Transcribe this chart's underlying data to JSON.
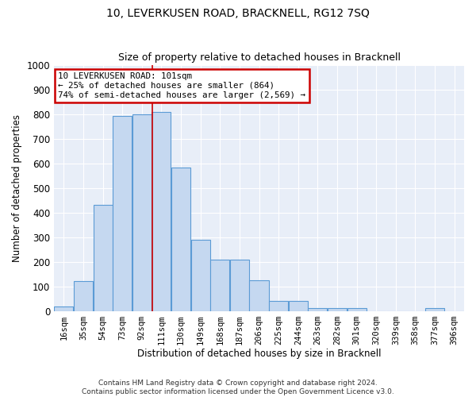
{
  "title": "10, LEVERKUSEN ROAD, BRACKNELL, RG12 7SQ",
  "subtitle": "Size of property relative to detached houses in Bracknell",
  "xlabel": "Distribution of detached houses by size in Bracknell",
  "ylabel": "Number of detached properties",
  "bar_labels": [
    "16sqm",
    "35sqm",
    "54sqm",
    "73sqm",
    "92sqm",
    "111sqm",
    "130sqm",
    "149sqm",
    "168sqm",
    "187sqm",
    "206sqm",
    "225sqm",
    "244sqm",
    "263sqm",
    "282sqm",
    "301sqm",
    "320sqm",
    "339sqm",
    "358sqm",
    "377sqm",
    "396sqm"
  ],
  "bar_values": [
    18,
    120,
    430,
    795,
    800,
    810,
    585,
    290,
    210,
    210,
    125,
    40,
    40,
    12,
    10,
    10,
    0,
    0,
    0,
    10,
    0
  ],
  "bar_color": "#c5d8f0",
  "bar_edge_color": "#5b9bd5",
  "vline_color": "#cc0000",
  "vline_x_index": 4.55,
  "annotation_text": "10 LEVERKUSEN ROAD: 101sqm\n← 25% of detached houses are smaller (864)\n74% of semi-detached houses are larger (2,569) →",
  "annotation_box_color": "#ffffff",
  "annotation_box_edge": "#cc0000",
  "ylim": [
    0,
    1000
  ],
  "yticks": [
    0,
    100,
    200,
    300,
    400,
    500,
    600,
    700,
    800,
    900,
    1000
  ],
  "bg_color": "#e8eef8",
  "grid_color": "#ffffff",
  "fig_bg_color": "#ffffff",
  "footer": "Contains HM Land Registry data © Crown copyright and database right 2024.\nContains public sector information licensed under the Open Government Licence v3.0."
}
